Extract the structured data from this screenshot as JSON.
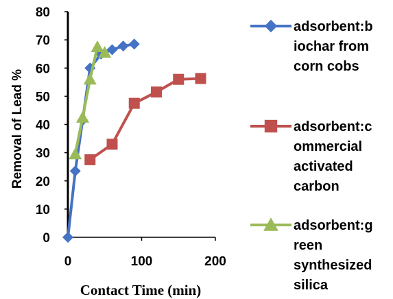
{
  "chart_data": {
    "type": "line",
    "xlabel": "Contact Time (min)",
    "ylabel": "Removal of Lead %",
    "xlim": [
      0,
      200
    ],
    "ylim": [
      0,
      80
    ],
    "x_ticks": [
      "0",
      "100",
      "200"
    ],
    "y_ticks": [
      "0",
      "10",
      "20",
      "30",
      "40",
      "50",
      "60",
      "70",
      "80"
    ],
    "grid": false,
    "legend_position": "right",
    "series": [
      {
        "name": "adsorbent:biochar from corn cobs",
        "legend_lines": [
          "adsorbent:b",
          "iochar from",
          "corn cobs"
        ],
        "color": "#4472C4",
        "marker": "diamond",
        "x": [
          0,
          10,
          20,
          30,
          45,
          60,
          75,
          90
        ],
        "y": [
          0,
          23.5,
          41.5,
          60,
          65,
          66.5,
          67.8,
          68.5
        ]
      },
      {
        "name": "adsorbent:commercial activated carbon",
        "legend_lines": [
          "adsorbent:c",
          "ommercial",
          "activated",
          "carbon"
        ],
        "color": "#C0504D",
        "marker": "square",
        "x": [
          30,
          60,
          90,
          120,
          150,
          180
        ],
        "y": [
          27.5,
          33,
          47.5,
          51.5,
          56,
          56.3
        ]
      },
      {
        "name": "adsorbent:green synthesized silica",
        "legend_lines": [
          "adsorbent:g",
          "reen",
          "synthesized",
          "silica"
        ],
        "color": "#9BBB59",
        "marker": "triangle",
        "x": [
          10,
          20,
          30,
          40,
          50
        ],
        "y": [
          29.5,
          42.5,
          56,
          67.5,
          65.5
        ]
      }
    ]
  }
}
